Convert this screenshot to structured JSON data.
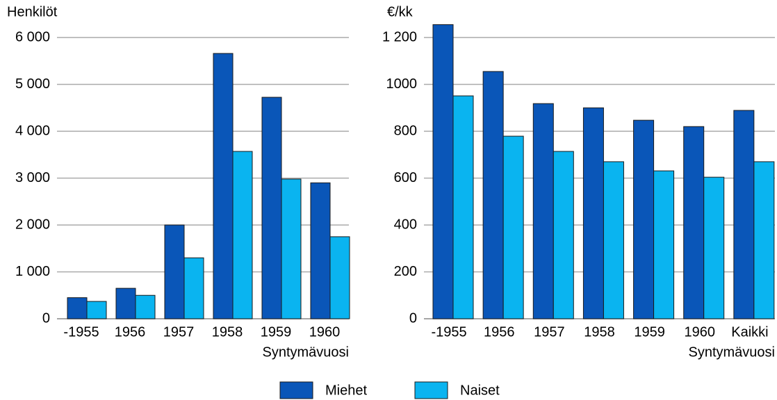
{
  "chart_data": [
    {
      "type": "bar",
      "y_label": "Henkilöt",
      "x_label": "Syntymävuosi",
      "categories": [
        "-1955",
        "1956",
        "1957",
        "1958",
        "1959",
        "1960"
      ],
      "series": [
        {
          "name": "Miehet",
          "color": "#0a56b8",
          "values": [
            450,
            650,
            2000,
            5660,
            4725,
            2900
          ]
        },
        {
          "name": "Naiset",
          "color": "#0ab4f0",
          "values": [
            370,
            500,
            1300,
            3570,
            2980,
            1750
          ]
        }
      ],
      "ylim": [
        0,
        6000
      ],
      "yticks": [
        0,
        {
          "value": 1000,
          "label": "1 000"
        },
        {
          "value": 2000,
          "label": "2 000"
        },
        {
          "value": 3000,
          "label": "3 000"
        },
        {
          "value": 4000,
          "label": "4 000"
        },
        {
          "value": 5000,
          "label": "5 000"
        },
        {
          "value": 6000,
          "label": "6 000"
        }
      ],
      "grid": true
    },
    {
      "type": "bar",
      "y_label": "€/kk",
      "x_label": "Syntymävuosi",
      "categories": [
        "-1955",
        "1956",
        "1957",
        "1958",
        "1959",
        "1960",
        "Kaikki"
      ],
      "series": [
        {
          "name": "Miehet",
          "color": "#0a56b8",
          "values": [
            1255,
            1055,
            918,
            900,
            847,
            820,
            889
          ]
        },
        {
          "name": "Naiset",
          "color": "#0ab4f0",
          "values": [
            951,
            779,
            714,
            670,
            631,
            604,
            670
          ]
        }
      ],
      "ylim": [
        0,
        1200
      ],
      "yticks": [
        0,
        200,
        400,
        600,
        800,
        1000,
        {
          "value": 1200,
          "label": "1 200"
        }
      ],
      "grid": true
    }
  ]
}
